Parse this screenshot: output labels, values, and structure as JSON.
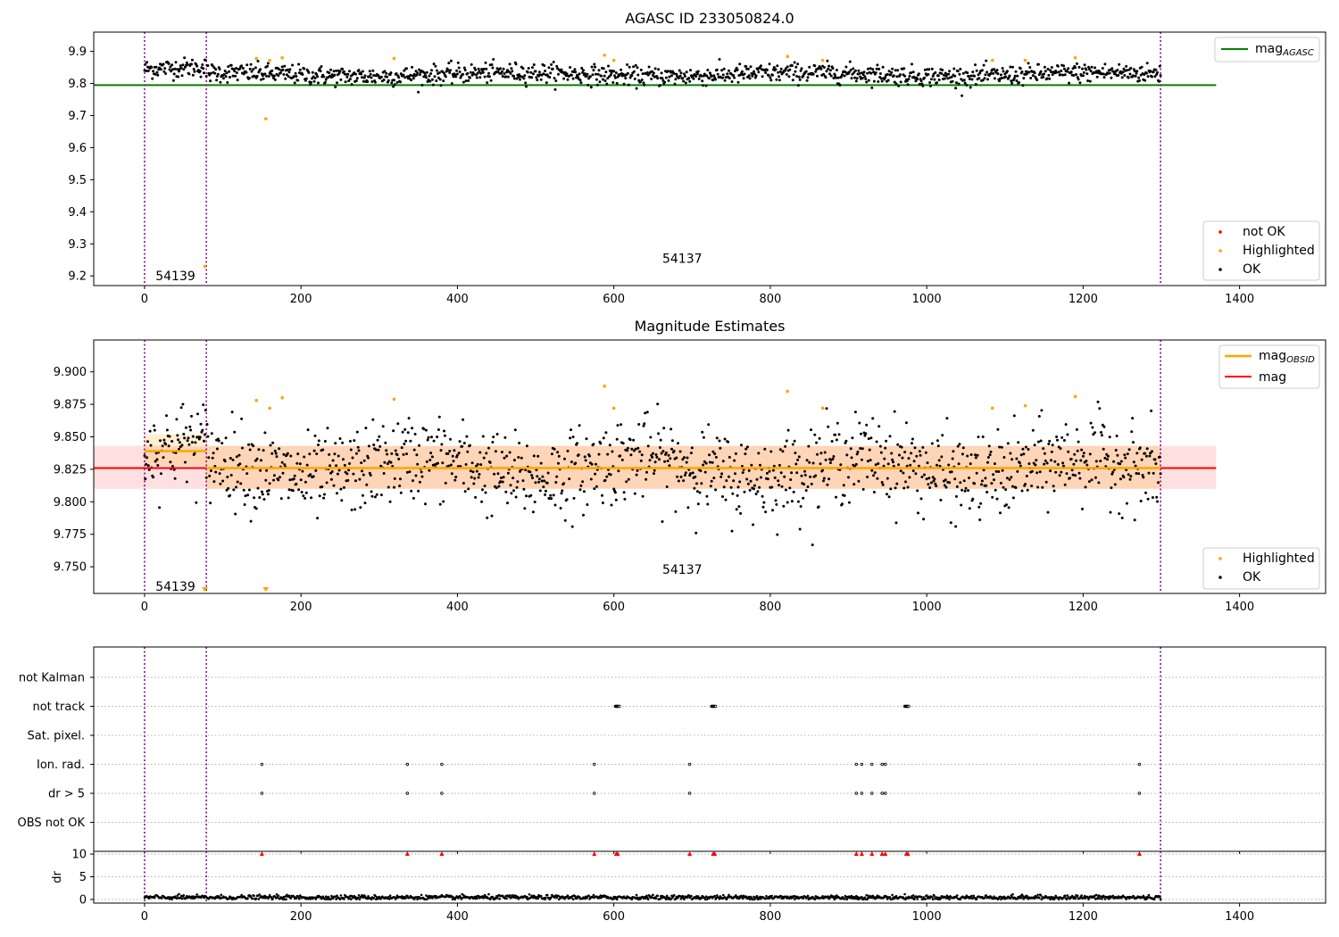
{
  "chart_data": [
    {
      "type": "scatter",
      "title": "AGASC ID 233050824.0",
      "xlabel": "",
      "ylabel": "",
      "xlim": [
        -65,
        1510
      ],
      "ylim": [
        9.17,
        9.96
      ],
      "xticks": [
        0,
        200,
        400,
        600,
        800,
        1000,
        1200,
        1400
      ],
      "yticks": [
        9.2,
        9.3,
        9.4,
        9.5,
        9.6,
        9.7,
        9.8,
        9.9
      ],
      "vlines": [
        0,
        79,
        1299
      ],
      "hline": {
        "name": "mag",
        "sub": "AGASC",
        "y": 9.795,
        "x_range": [
          -65,
          1370
        ],
        "color": "#008000"
      },
      "annotations": [
        {
          "text": "54139",
          "x": 14,
          "y": 9.2
        },
        {
          "text": "54137",
          "x": 662,
          "y": 9.255
        }
      ],
      "legend_lines": [
        {
          "name": "mag",
          "sub": "AGASC",
          "color": "#008000"
        }
      ],
      "legend_points": [
        {
          "name": "not OK",
          "color": "#ff0000"
        },
        {
          "name": "Highlighted",
          "color": "#ffa500"
        },
        {
          "name": "OK",
          "color": "#000000"
        }
      ],
      "ok_series": {
        "x_range": [
          0,
          1299
        ],
        "n": 1300,
        "center": 9.83,
        "spread": 0.015
      },
      "highlighted": [
        [
          143,
          9.878
        ],
        [
          160,
          9.872
        ],
        [
          176,
          9.88
        ],
        [
          319,
          9.878
        ],
        [
          588,
          9.888
        ],
        [
          600,
          9.872
        ],
        [
          822,
          9.884
        ],
        [
          867,
          9.872
        ],
        [
          1084,
          9.872
        ],
        [
          1126,
          9.872
        ],
        [
          1190,
          9.88
        ],
        [
          155,
          9.69
        ],
        [
          77,
          9.23
        ]
      ]
    },
    {
      "type": "scatter",
      "title": "Magnitude Estimates",
      "xlabel": "",
      "ylabel": "",
      "xlim": [
        -65,
        1510
      ],
      "ylim": [
        9.7295,
        9.9245
      ],
      "xticks": [
        0,
        200,
        400,
        600,
        800,
        1000,
        1200,
        1400
      ],
      "yticks": [
        9.75,
        9.775,
        9.8,
        9.825,
        9.85,
        9.875,
        9.9
      ],
      "ytick_labels": [
        "9.750",
        "9.775",
        "9.800",
        "9.825",
        "9.850",
        "9.875",
        "9.900"
      ],
      "vlines": [
        0,
        79,
        1299
      ],
      "mag_line": {
        "name": "mag",
        "y": 9.826,
        "x_range": [
          -65,
          1370
        ],
        "band": [
          9.81,
          9.843
        ],
        "color": "#ff0000"
      },
      "obsid_segments": [
        {
          "x": [
            0,
            79
          ],
          "y": 9.839,
          "band": [
            9.828,
            9.852
          ]
        },
        {
          "x": [
            79,
            1299
          ],
          "y": 9.826,
          "band": [
            9.81,
            9.843
          ]
        }
      ],
      "annotations": [
        {
          "text": "54139",
          "x": 14,
          "y": 9.735
        },
        {
          "text": "54137",
          "x": 662,
          "y": 9.748
        }
      ],
      "legend_lines": [
        {
          "name": "mag",
          "sub": "OBSID",
          "color": "#ffa500"
        },
        {
          "name": "mag",
          "sub": "",
          "color": "#ff0000"
        }
      ],
      "legend_points": [
        {
          "name": "Highlighted",
          "color": "#ffa500"
        },
        {
          "name": "OK",
          "color": "#000000"
        }
      ],
      "ok_series": {
        "x_range": [
          0,
          1299
        ],
        "n": 1300,
        "center": 9.826,
        "spread": 0.016
      },
      "highlighted": [
        [
          143,
          9.878
        ],
        [
          160,
          9.872
        ],
        [
          176,
          9.88
        ],
        [
          319,
          9.879
        ],
        [
          588,
          9.889
        ],
        [
          600,
          9.872
        ],
        [
          822,
          9.885
        ],
        [
          867,
          9.872
        ],
        [
          1084,
          9.872
        ],
        [
          1126,
          9.874
        ],
        [
          1190,
          9.881
        ]
      ],
      "below_range_markers": [
        77,
        155
      ]
    },
    {
      "type": "scatter",
      "title": "",
      "xlabel": "",
      "ylabel": "",
      "xlim": [
        -65,
        1510
      ],
      "xticks": [
        0,
        200,
        400,
        600,
        800,
        1000,
        1200,
        1400
      ],
      "vlines": [
        0,
        79,
        1299
      ],
      "categories": [
        "not Kalman",
        "not track",
        "Sat. pixel.",
        "Ion. rad.",
        "dr > 5",
        "OBS not OK"
      ],
      "flags": {
        "not Kalman": [],
        "not track": [
          602,
          603,
          604,
          605,
          606,
          607,
          725,
          726,
          727,
          728,
          729,
          730,
          972,
          973,
          974,
          975,
          976,
          977
        ],
        "Sat. pixel.": [],
        "Ion. rad.": [
          150,
          336,
          380,
          575,
          697,
          910,
          917,
          930,
          943,
          947,
          1272
        ],
        "dr > 5": [
          150,
          336,
          380,
          575,
          697,
          910,
          917,
          930,
          943,
          947,
          1272
        ],
        "OBS not OK": []
      }
    },
    {
      "type": "scatter",
      "title": "",
      "xlabel": "",
      "ylabel": "dr",
      "xlim": [
        -65,
        1510
      ],
      "ylim": [
        -0.8,
        10.6
      ],
      "yticks": [
        0,
        5,
        10
      ],
      "xticks": [
        0,
        200,
        400,
        600,
        800,
        1000,
        1200,
        1400
      ],
      "vlines": [
        0,
        79,
        1299
      ],
      "dr_series": {
        "x_range": [
          0,
          1299
        ],
        "n": 1300,
        "center": 0.45,
        "spread": 0.25
      },
      "outlier_markers": [
        150,
        336,
        380,
        575,
        603,
        605,
        697,
        727,
        729,
        910,
        917,
        930,
        943,
        947,
        974,
        976,
        1272
      ]
    }
  ]
}
